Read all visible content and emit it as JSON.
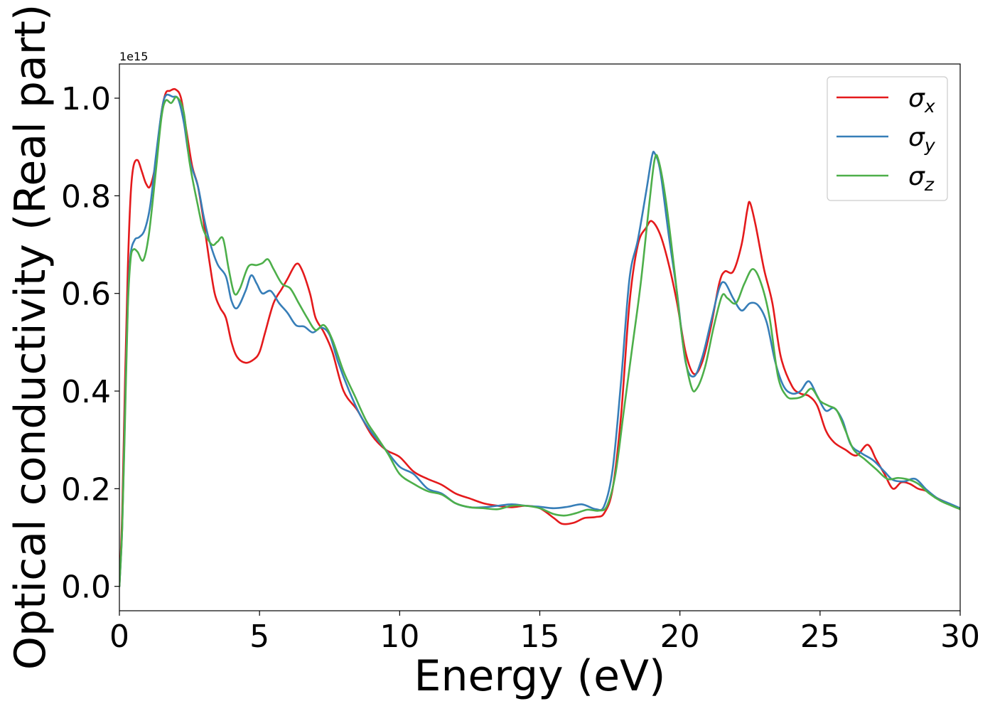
{
  "chart_data": {
    "type": "line",
    "title": "",
    "xlabel": "Energy (eV)",
    "ylabel": "Optical conductivity (Real part)",
    "y_offset_label": "1e15",
    "xlim": [
      0,
      30
    ],
    "ylim": [
      -0.05,
      1.07
    ],
    "x_ticks": [
      0,
      5,
      10,
      15,
      20,
      25,
      30
    ],
    "x_tick_labels": [
      "0",
      "5",
      "10",
      "15",
      "20",
      "25",
      "30"
    ],
    "y_ticks": [
      0.0,
      0.2,
      0.4,
      0.6,
      0.8,
      1.0
    ],
    "y_tick_labels": [
      "0.0",
      "0.2",
      "0.4",
      "0.6",
      "0.8",
      "1.0"
    ],
    "grid": false,
    "legend_position": "top-right",
    "series": [
      {
        "name": "σx",
        "legend_symbol": "σ",
        "legend_subscript": "x",
        "color": "#e41a1c",
        "points": [
          [
            0,
            0
          ],
          [
            0.1,
            0.15
          ],
          [
            0.2,
            0.42
          ],
          [
            0.3,
            0.65
          ],
          [
            0.4,
            0.8
          ],
          [
            0.5,
            0.86
          ],
          [
            0.65,
            0.873
          ],
          [
            0.8,
            0.85
          ],
          [
            0.95,
            0.825
          ],
          [
            1.1,
            0.82
          ],
          [
            1.3,
            0.87
          ],
          [
            1.5,
            0.97
          ],
          [
            1.65,
            1.01
          ],
          [
            1.8,
            1.015
          ],
          [
            2.0,
            1.018
          ],
          [
            2.2,
            1.0
          ],
          [
            2.4,
            0.93
          ],
          [
            2.6,
            0.86
          ],
          [
            2.8,
            0.82
          ],
          [
            3.0,
            0.75
          ],
          [
            3.2,
            0.67
          ],
          [
            3.4,
            0.6
          ],
          [
            3.6,
            0.57
          ],
          [
            3.8,
            0.55
          ],
          [
            4.0,
            0.5
          ],
          [
            4.2,
            0.47
          ],
          [
            4.5,
            0.458
          ],
          [
            4.8,
            0.465
          ],
          [
            5.0,
            0.48
          ],
          [
            5.2,
            0.52
          ],
          [
            5.5,
            0.58
          ],
          [
            5.8,
            0.61
          ],
          [
            6.0,
            0.63
          ],
          [
            6.3,
            0.66
          ],
          [
            6.5,
            0.65
          ],
          [
            6.8,
            0.6
          ],
          [
            7.0,
            0.55
          ],
          [
            7.3,
            0.52
          ],
          [
            7.6,
            0.48
          ],
          [
            8.0,
            0.4
          ],
          [
            8.5,
            0.36
          ],
          [
            9.0,
            0.31
          ],
          [
            9.5,
            0.28
          ],
          [
            10.0,
            0.265
          ],
          [
            10.5,
            0.235
          ],
          [
            11.0,
            0.22
          ],
          [
            11.5,
            0.208
          ],
          [
            12.0,
            0.19
          ],
          [
            12.5,
            0.18
          ],
          [
            13.0,
            0.17
          ],
          [
            13.5,
            0.165
          ],
          [
            14.0,
            0.162
          ],
          [
            14.5,
            0.165
          ],
          [
            15.0,
            0.16
          ],
          [
            15.5,
            0.14
          ],
          [
            15.8,
            0.128
          ],
          [
            16.2,
            0.13
          ],
          [
            16.6,
            0.14
          ],
          [
            17.0,
            0.142
          ],
          [
            17.3,
            0.15
          ],
          [
            17.6,
            0.2
          ],
          [
            17.9,
            0.35
          ],
          [
            18.2,
            0.58
          ],
          [
            18.5,
            0.7
          ],
          [
            18.8,
            0.735
          ],
          [
            19.0,
            0.748
          ],
          [
            19.3,
            0.72
          ],
          [
            19.6,
            0.66
          ],
          [
            19.9,
            0.58
          ],
          [
            20.2,
            0.48
          ],
          [
            20.5,
            0.435
          ],
          [
            20.8,
            0.46
          ],
          [
            21.1,
            0.53
          ],
          [
            21.4,
            0.62
          ],
          [
            21.6,
            0.645
          ],
          [
            21.9,
            0.645
          ],
          [
            22.2,
            0.7
          ],
          [
            22.4,
            0.77
          ],
          [
            22.5,
            0.786
          ],
          [
            22.7,
            0.74
          ],
          [
            23.0,
            0.65
          ],
          [
            23.3,
            0.58
          ],
          [
            23.6,
            0.47
          ],
          [
            24.0,
            0.41
          ],
          [
            24.3,
            0.395
          ],
          [
            24.6,
            0.39
          ],
          [
            24.9,
            0.37
          ],
          [
            25.2,
            0.32
          ],
          [
            25.5,
            0.295
          ],
          [
            25.9,
            0.28
          ],
          [
            26.3,
            0.268
          ],
          [
            26.7,
            0.29
          ],
          [
            27.0,
            0.26
          ],
          [
            27.3,
            0.23
          ],
          [
            27.6,
            0.2
          ],
          [
            27.9,
            0.213
          ],
          [
            28.2,
            0.21
          ],
          [
            28.5,
            0.2
          ],
          [
            28.8,
            0.195
          ],
          [
            29.1,
            0.183
          ],
          [
            29.5,
            0.172
          ],
          [
            30.0,
            0.158
          ]
        ]
      },
      {
        "name": "σy",
        "legend_symbol": "σ",
        "legend_subscript": "y",
        "color": "#377eb8",
        "points": [
          [
            0,
            0
          ],
          [
            0.1,
            0.12
          ],
          [
            0.2,
            0.36
          ],
          [
            0.3,
            0.58
          ],
          [
            0.4,
            0.68
          ],
          [
            0.55,
            0.71
          ],
          [
            0.7,
            0.715
          ],
          [
            0.9,
            0.73
          ],
          [
            1.1,
            0.78
          ],
          [
            1.3,
            0.88
          ],
          [
            1.5,
            0.97
          ],
          [
            1.65,
            1.005
          ],
          [
            1.9,
            1.003
          ],
          [
            2.1,
            0.998
          ],
          [
            2.3,
            0.95
          ],
          [
            2.5,
            0.875
          ],
          [
            2.8,
            0.82
          ],
          [
            3.0,
            0.76
          ],
          [
            3.2,
            0.71
          ],
          [
            3.5,
            0.66
          ],
          [
            3.8,
            0.635
          ],
          [
            4.0,
            0.585
          ],
          [
            4.2,
            0.57
          ],
          [
            4.5,
            0.605
          ],
          [
            4.7,
            0.637
          ],
          [
            4.9,
            0.62
          ],
          [
            5.1,
            0.6
          ],
          [
            5.4,
            0.605
          ],
          [
            5.7,
            0.58
          ],
          [
            6.0,
            0.56
          ],
          [
            6.3,
            0.535
          ],
          [
            6.6,
            0.532
          ],
          [
            6.9,
            0.52
          ],
          [
            7.2,
            0.53
          ],
          [
            7.5,
            0.515
          ],
          [
            7.8,
            0.46
          ],
          [
            8.2,
            0.4
          ],
          [
            8.6,
            0.35
          ],
          [
            9.0,
            0.315
          ],
          [
            9.5,
            0.28
          ],
          [
            10.0,
            0.245
          ],
          [
            10.5,
            0.23
          ],
          [
            11.0,
            0.2
          ],
          [
            11.5,
            0.19
          ],
          [
            12.0,
            0.17
          ],
          [
            12.5,
            0.162
          ],
          [
            13.0,
            0.162
          ],
          [
            13.5,
            0.165
          ],
          [
            14.0,
            0.168
          ],
          [
            14.5,
            0.165
          ],
          [
            15.0,
            0.163
          ],
          [
            15.5,
            0.16
          ],
          [
            16.0,
            0.163
          ],
          [
            16.5,
            0.168
          ],
          [
            17.0,
            0.158
          ],
          [
            17.3,
            0.165
          ],
          [
            17.6,
            0.24
          ],
          [
            17.9,
            0.42
          ],
          [
            18.2,
            0.63
          ],
          [
            18.5,
            0.71
          ],
          [
            18.8,
            0.81
          ],
          [
            19.0,
            0.88
          ],
          [
            19.1,
            0.887
          ],
          [
            19.3,
            0.85
          ],
          [
            19.6,
            0.72
          ],
          [
            19.9,
            0.6
          ],
          [
            20.2,
            0.46
          ],
          [
            20.5,
            0.43
          ],
          [
            20.8,
            0.47
          ],
          [
            21.1,
            0.54
          ],
          [
            21.4,
            0.61
          ],
          [
            21.6,
            0.622
          ],
          [
            21.9,
            0.59
          ],
          [
            22.2,
            0.565
          ],
          [
            22.5,
            0.58
          ],
          [
            22.8,
            0.575
          ],
          [
            23.1,
            0.54
          ],
          [
            23.4,
            0.46
          ],
          [
            23.7,
            0.41
          ],
          [
            24.0,
            0.395
          ],
          [
            24.3,
            0.4
          ],
          [
            24.6,
            0.42
          ],
          [
            24.9,
            0.39
          ],
          [
            25.2,
            0.36
          ],
          [
            25.5,
            0.365
          ],
          [
            25.8,
            0.34
          ],
          [
            26.1,
            0.29
          ],
          [
            26.5,
            0.272
          ],
          [
            26.9,
            0.258
          ],
          [
            27.3,
            0.235
          ],
          [
            27.6,
            0.218
          ],
          [
            28.0,
            0.215
          ],
          [
            28.4,
            0.22
          ],
          [
            28.8,
            0.198
          ],
          [
            29.2,
            0.18
          ],
          [
            29.6,
            0.17
          ],
          [
            30.0,
            0.16
          ]
        ]
      },
      {
        "name": "σz",
        "legend_symbol": "σ",
        "legend_subscript": "z",
        "color": "#4daf4a",
        "points": [
          [
            0,
            0
          ],
          [
            0.1,
            0.12
          ],
          [
            0.2,
            0.34
          ],
          [
            0.3,
            0.57
          ],
          [
            0.4,
            0.67
          ],
          [
            0.5,
            0.69
          ],
          [
            0.65,
            0.685
          ],
          [
            0.85,
            0.668
          ],
          [
            1.05,
            0.72
          ],
          [
            1.3,
            0.85
          ],
          [
            1.5,
            0.96
          ],
          [
            1.65,
            0.995
          ],
          [
            1.85,
            0.99
          ],
          [
            2.05,
            1.002
          ],
          [
            2.3,
            0.97
          ],
          [
            2.5,
            0.87
          ],
          [
            2.8,
            0.78
          ],
          [
            3.0,
            0.73
          ],
          [
            3.3,
            0.7
          ],
          [
            3.5,
            0.706
          ],
          [
            3.7,
            0.712
          ],
          [
            3.9,
            0.65
          ],
          [
            4.1,
            0.6
          ],
          [
            4.3,
            0.61
          ],
          [
            4.6,
            0.655
          ],
          [
            4.9,
            0.658
          ],
          [
            5.1,
            0.662
          ],
          [
            5.3,
            0.67
          ],
          [
            5.5,
            0.65
          ],
          [
            5.8,
            0.62
          ],
          [
            6.1,
            0.61
          ],
          [
            6.4,
            0.58
          ],
          [
            6.7,
            0.55
          ],
          [
            7.0,
            0.525
          ],
          [
            7.3,
            0.535
          ],
          [
            7.6,
            0.505
          ],
          [
            8.0,
            0.44
          ],
          [
            8.4,
            0.39
          ],
          [
            8.8,
            0.34
          ],
          [
            9.2,
            0.305
          ],
          [
            9.6,
            0.27
          ],
          [
            10.0,
            0.23
          ],
          [
            10.5,
            0.21
          ],
          [
            11.0,
            0.195
          ],
          [
            11.5,
            0.188
          ],
          [
            12.0,
            0.17
          ],
          [
            12.5,
            0.162
          ],
          [
            13.0,
            0.16
          ],
          [
            13.5,
            0.158
          ],
          [
            14.0,
            0.165
          ],
          [
            14.5,
            0.165
          ],
          [
            15.0,
            0.16
          ],
          [
            15.5,
            0.148
          ],
          [
            15.9,
            0.145
          ],
          [
            16.3,
            0.15
          ],
          [
            16.7,
            0.157
          ],
          [
            17.1,
            0.155
          ],
          [
            17.4,
            0.165
          ],
          [
            17.7,
            0.23
          ],
          [
            18.0,
            0.36
          ],
          [
            18.3,
            0.49
          ],
          [
            18.6,
            0.62
          ],
          [
            18.9,
            0.78
          ],
          [
            19.1,
            0.875
          ],
          [
            19.25,
            0.87
          ],
          [
            19.5,
            0.79
          ],
          [
            19.8,
            0.65
          ],
          [
            20.1,
            0.5
          ],
          [
            20.4,
            0.41
          ],
          [
            20.6,
            0.405
          ],
          [
            20.9,
            0.45
          ],
          [
            21.2,
            0.53
          ],
          [
            21.5,
            0.595
          ],
          [
            21.7,
            0.59
          ],
          [
            22.0,
            0.58
          ],
          [
            22.3,
            0.62
          ],
          [
            22.6,
            0.65
          ],
          [
            22.9,
            0.62
          ],
          [
            23.2,
            0.55
          ],
          [
            23.5,
            0.43
          ],
          [
            23.8,
            0.39
          ],
          [
            24.1,
            0.385
          ],
          [
            24.4,
            0.39
          ],
          [
            24.7,
            0.405
          ],
          [
            25.0,
            0.38
          ],
          [
            25.3,
            0.37
          ],
          [
            25.6,
            0.36
          ],
          [
            25.9,
            0.32
          ],
          [
            26.2,
            0.28
          ],
          [
            26.6,
            0.26
          ],
          [
            27.0,
            0.24
          ],
          [
            27.4,
            0.22
          ],
          [
            27.8,
            0.222
          ],
          [
            28.2,
            0.218
          ],
          [
            28.5,
            0.21
          ],
          [
            28.9,
            0.19
          ],
          [
            29.3,
            0.175
          ],
          [
            29.7,
            0.165
          ],
          [
            30.0,
            0.158
          ]
        ]
      }
    ]
  }
}
